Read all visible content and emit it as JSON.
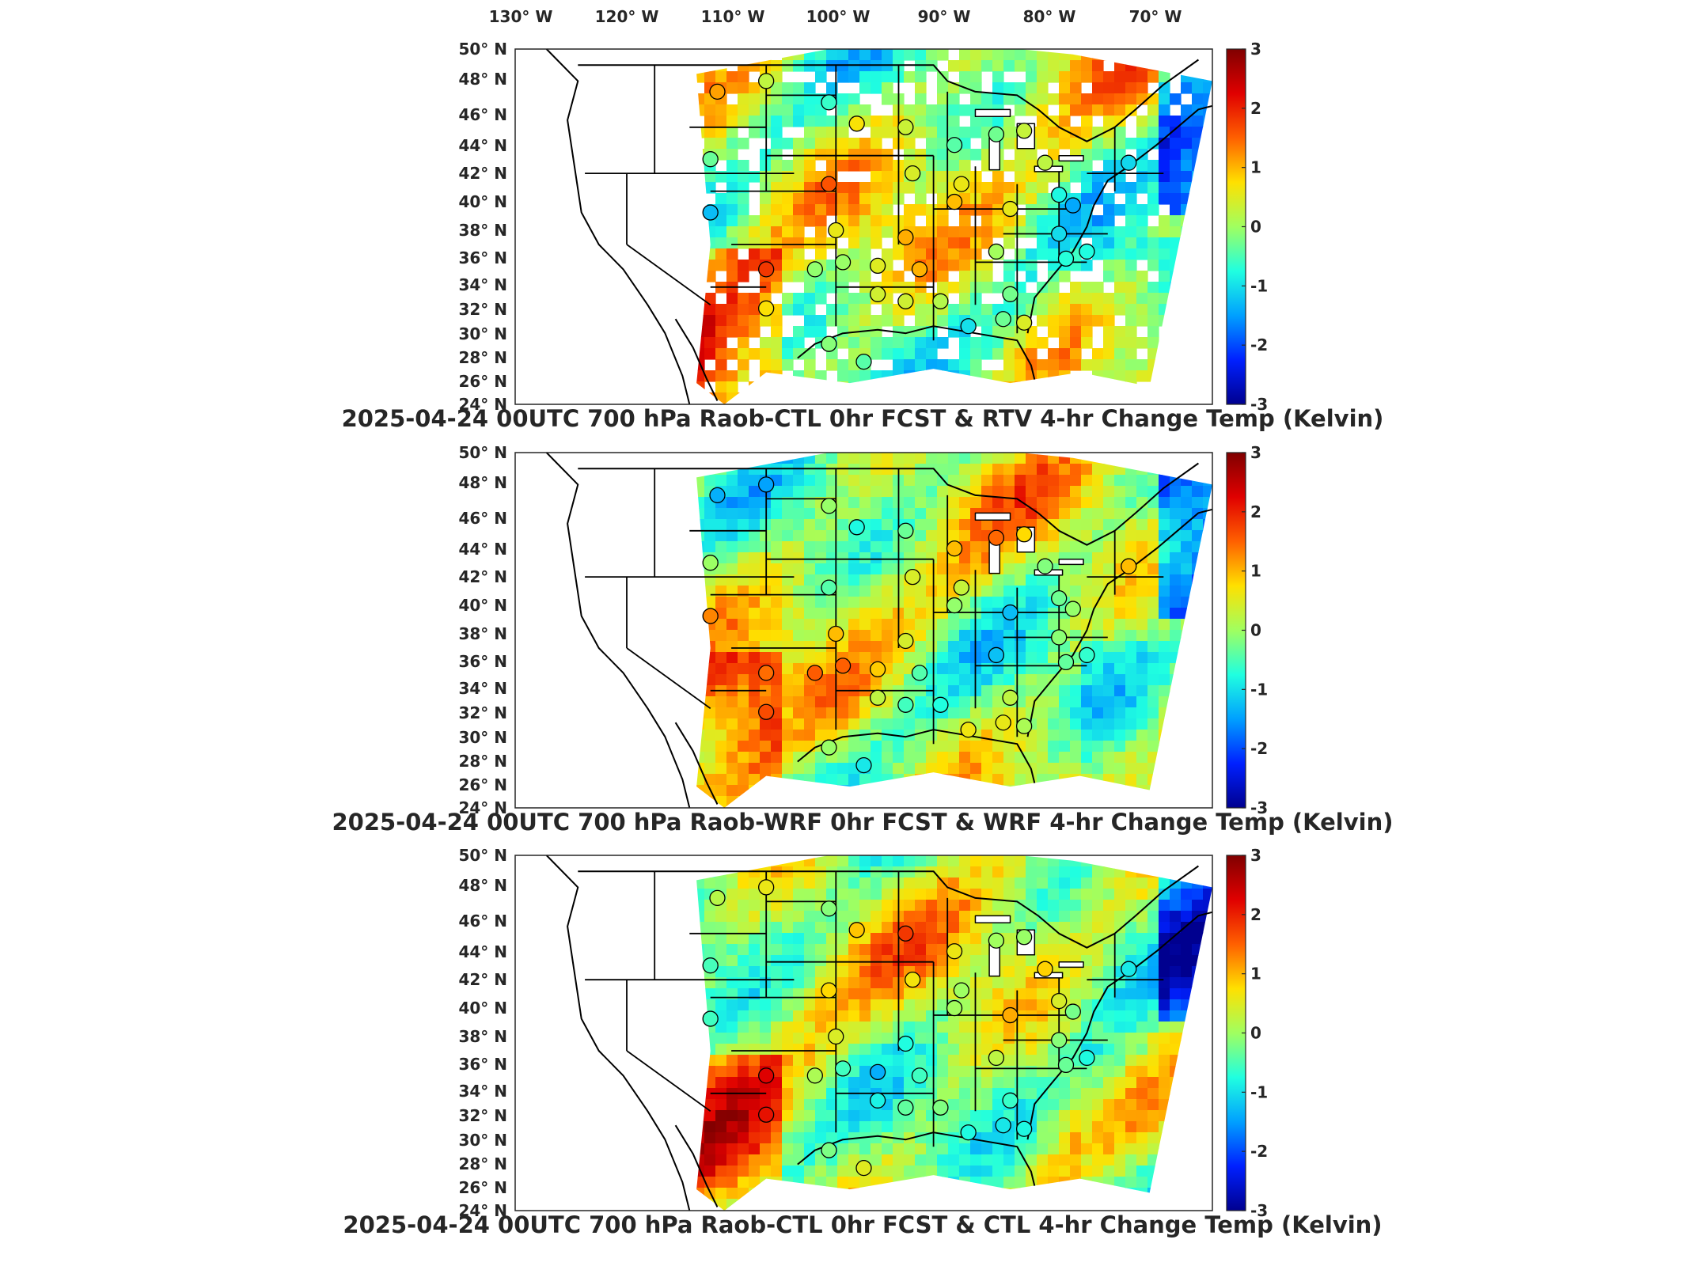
{
  "figure": {
    "lon_labels": [
      "130° W",
      "120° W",
      "110° W",
      "100° W",
      "90° W",
      "80° W",
      "70° W"
    ],
    "lat_labels": [
      "50° N",
      "48° N",
      "46° N",
      "44° N",
      "42° N",
      "40° N",
      "38° N",
      "36° N",
      "34° N",
      "32° N",
      "30° N",
      "28° N",
      "26° N",
      "24° N"
    ],
    "colorbar_ticks": [
      "3",
      "2",
      "1",
      "0",
      "-1",
      "-2",
      "-3"
    ],
    "colormap": [
      "#00008f",
      "#0020ff",
      "#00a0ff",
      "#20ffe0",
      "#a0ff60",
      "#ffe000",
      "#ff6000",
      "#e00000",
      "#800000"
    ],
    "colorbar_range": [
      -3,
      3
    ]
  },
  "panels": [
    {
      "title": "2025-04-24 00UTC 700 hPa Raob-CTL 0hr FCST & RTV 4-hr Change Temp (Kelvin)",
      "field": "RTV 4-hr Change Temp",
      "masked_patches": true
    },
    {
      "title": "2025-04-24 00UTC 700 hPa Raob-WRF 0hr FCST & WRF 4-hr Change Temp (Kelvin)",
      "field": "WRF 4-hr Change Temp",
      "masked_patches": false
    },
    {
      "title": "2025-04-24 00UTC 700 hPa Raob-CTL 0hr FCST & CTL 4-hr Change Temp (Kelvin)",
      "field": "CTL 4-hr Change Temp",
      "masked_patches": false
    }
  ]
}
